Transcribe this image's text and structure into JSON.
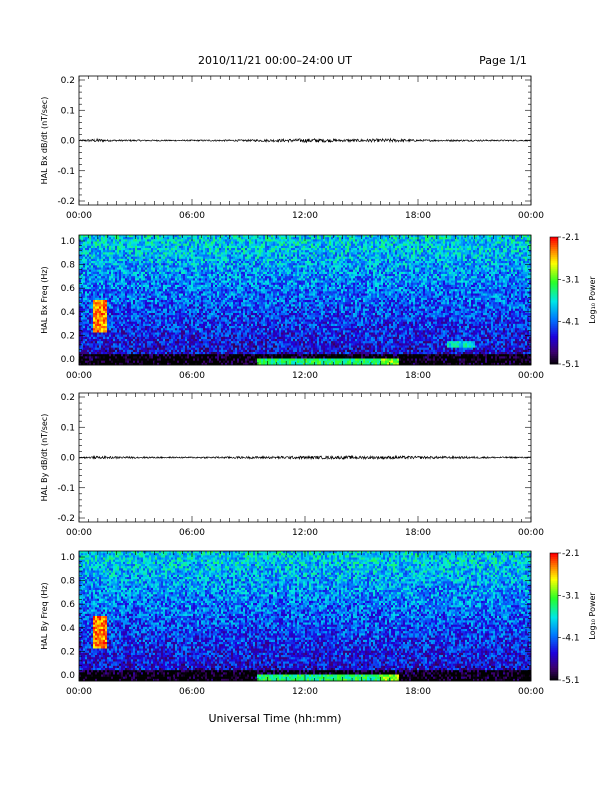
{
  "header": {
    "title": "2010/11/21  00:00–24:00 UT",
    "page": "Page 1/1"
  },
  "xlabel": "Universal Time (hh:mm)",
  "chart_data": [
    {
      "type": "line",
      "ylabel": "HAL Bx dB/dt (nT/sec)",
      "ylim": [
        -0.2,
        0.2
      ],
      "yticks": [
        "0.2",
        "0.1",
        "0.0",
        "-0.1",
        "-0.2"
      ],
      "xticks": [
        "00:00",
        "06:00",
        "12:00",
        "18:00",
        "00:00"
      ],
      "x_range_hours": [
        0,
        24
      ],
      "baseline": 0.0,
      "noise_envelope": [
        {
          "hour": 0,
          "amp": 0.002
        },
        {
          "hour": 0.5,
          "amp": 0.004
        },
        {
          "hour": 1.0,
          "amp": 0.006
        },
        {
          "hour": 1.5,
          "amp": 0.003
        },
        {
          "hour": 5,
          "amp": 0.002
        },
        {
          "hour": 9,
          "amp": 0.003
        },
        {
          "hour": 11,
          "amp": 0.005
        },
        {
          "hour": 12.5,
          "amp": 0.007
        },
        {
          "hour": 14,
          "amp": 0.004
        },
        {
          "hour": 16.5,
          "amp": 0.006
        },
        {
          "hour": 18,
          "amp": 0.003
        },
        {
          "hour": 24,
          "amp": 0.002
        }
      ]
    },
    {
      "type": "heatmap",
      "ylabel": "HAL Bx Freq (Hz)",
      "ylim": [
        0.0,
        1.0
      ],
      "yticks": [
        "1.0",
        "0.8",
        "0.6",
        "0.4",
        "0.2",
        "0.0"
      ],
      "xticks": [
        "00:00",
        "06:00",
        "12:00",
        "18:00",
        "00:00"
      ],
      "x_range_hours": [
        0,
        24
      ],
      "colorbar": {
        "label": "Log₁₀ Power",
        "ticks": [
          "-2.1",
          "-3.1",
          "-4.1",
          "-5.1"
        ],
        "range": [
          -5.1,
          -2.1
        ]
      },
      "features": [
        {
          "hour_start": 0.7,
          "hour_end": 1.5,
          "freq_low": 0.25,
          "freq_high": 0.5,
          "log_power": -2.4
        },
        {
          "hour_start": 9.5,
          "hour_end": 16,
          "freq_low": 0.0,
          "freq_high": 0.05,
          "log_power": -3.3
        },
        {
          "hour_start": 16,
          "hour_end": 17,
          "freq_low": 0.0,
          "freq_high": 0.05,
          "log_power": -3.0
        },
        {
          "hour_start": 19.5,
          "hour_end": 21,
          "freq_low": 0.14,
          "freq_high": 0.18,
          "log_power": -3.6
        }
      ]
    },
    {
      "type": "line",
      "ylabel": "HAL By dB/dt (nT/sec)",
      "ylim": [
        -0.2,
        0.2
      ],
      "yticks": [
        "0.2",
        "0.1",
        "0.0",
        "-0.1",
        "-0.2"
      ],
      "xticks": [
        "00:00",
        "06:00",
        "12:00",
        "18:00",
        "00:00"
      ],
      "x_range_hours": [
        0,
        24
      ],
      "baseline": 0.0,
      "noise_envelope": [
        {
          "hour": 0,
          "amp": 0.002
        },
        {
          "hour": 1.0,
          "amp": 0.004
        },
        {
          "hour": 5,
          "amp": 0.002
        },
        {
          "hour": 12.5,
          "amp": 0.005
        },
        {
          "hour": 16.5,
          "amp": 0.005
        },
        {
          "hour": 24,
          "amp": 0.002
        }
      ]
    },
    {
      "type": "heatmap",
      "ylabel": "HAL By Freq (Hz)",
      "ylim": [
        0.0,
        1.0
      ],
      "yticks": [
        "1.0",
        "0.8",
        "0.6",
        "0.4",
        "0.2",
        "0.0"
      ],
      "xticks": [
        "00:00",
        "06:00",
        "12:00",
        "18:00",
        "00:00"
      ],
      "x_range_hours": [
        0,
        24
      ],
      "colorbar": {
        "label": "Log₁₀ Power",
        "ticks": [
          "-2.1",
          "-3.1",
          "-4.1",
          "-5.1"
        ],
        "range": [
          -5.1,
          -2.1
        ]
      },
      "features": [
        {
          "hour_start": 0.7,
          "hour_end": 1.5,
          "freq_low": 0.25,
          "freq_high": 0.5,
          "log_power": -2.4
        },
        {
          "hour_start": 9.5,
          "hour_end": 16,
          "freq_low": 0.0,
          "freq_high": 0.05,
          "log_power": -3.3
        },
        {
          "hour_start": 16,
          "hour_end": 17,
          "freq_low": 0.0,
          "freq_high": 0.05,
          "log_power": -3.0
        }
      ]
    }
  ]
}
